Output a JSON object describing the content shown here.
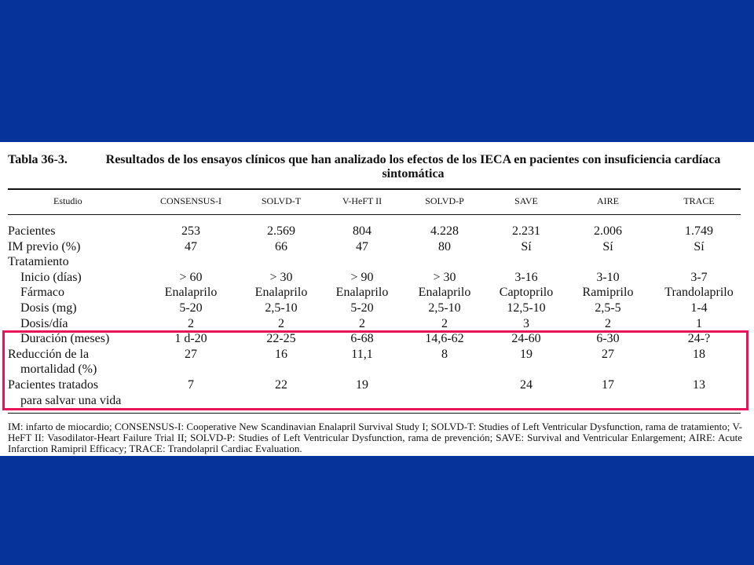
{
  "table": {
    "number": "Tabla 36-3.",
    "title": "Resultados de los ensayos clínicos que han analizado los efectos de los IECA en pacientes con insuficiencia cardíaca sintomática",
    "header": [
      "Estudio",
      "CONSENSUS-I",
      "SOLVD-T",
      "V-HeFT II",
      "SOLVD-P",
      "SAVE",
      "AIRE",
      "TRACE"
    ],
    "rows": [
      {
        "label": "Pacientes",
        "values": [
          "253",
          "2.569",
          "804",
          "4.228",
          "2.231",
          "2.006",
          "1.749"
        ]
      },
      {
        "label": "IM previo (%)",
        "values": [
          "47",
          "66",
          "47",
          "80",
          "Sí",
          "Sí",
          "Sí"
        ]
      },
      {
        "label": "Tratamiento",
        "values": [
          "",
          "",
          "",
          "",
          "",
          "",
          ""
        ]
      },
      {
        "label": "Inicio (días)",
        "values": [
          "> 60",
          "> 30",
          "> 90",
          "> 30",
          "3-16",
          "3-10",
          "3-7"
        ]
      },
      {
        "label": "Fármaco",
        "values": [
          "Enalaprilo",
          "Enalaprilo",
          "Enalaprilo",
          "Enalaprilo",
          "Captoprilo",
          "Ramiprilo",
          "Trandolaprilo"
        ]
      },
      {
        "label": "Dosis (mg)",
        "values": [
          "5-20",
          "2,5-10",
          "5-20",
          "2,5-10",
          "12,5-10",
          "2,5-5",
          "1-4"
        ]
      },
      {
        "label": "Dosis/día",
        "values": [
          "2",
          "2",
          "2",
          "2",
          "3",
          "2",
          "1"
        ]
      },
      {
        "label": "Duración (meses)",
        "values": [
          "1 d-20",
          "22-25",
          "6-68",
          "14,6-62",
          "24-60",
          "6-30",
          "24-?"
        ]
      },
      {
        "label": "Reducción de la",
        "values": [
          "27",
          "16",
          "11,1",
          "8",
          "19",
          "27",
          "18"
        ]
      },
      {
        "label": "mortalidad (%)",
        "values": [
          "",
          "",
          "",
          "",
          "",
          "",
          ""
        ]
      },
      {
        "label": "Pacientes tratados",
        "values": [
          "7",
          "22",
          "19",
          "",
          "24",
          "17",
          "13"
        ]
      },
      {
        "label": "para salvar una vida",
        "values": [
          "",
          "",
          "",
          "",
          "",
          "",
          ""
        ]
      }
    ],
    "footnote": "IM: infarto de miocardio; CONSENSUS-I: Cooperative New Scandinavian Enalapril Survival Study I; SOLVD-T: Studies of Left Ventricular Dysfunction, rama de tratamiento; V-HeFT II: Vasodilator-Heart Failure Trial II; SOLVD-P: Studies of Left Ventricular Dysfunction, rama de prevención; SAVE: Survival and Ventricular Enlargement; AIRE: Acute Infarction Ramipril Efficacy; TRACE: Trandolapril Cardiac Evaluation."
  },
  "colors": {
    "background": "#063399",
    "highlight_border": "#e8145a"
  }
}
